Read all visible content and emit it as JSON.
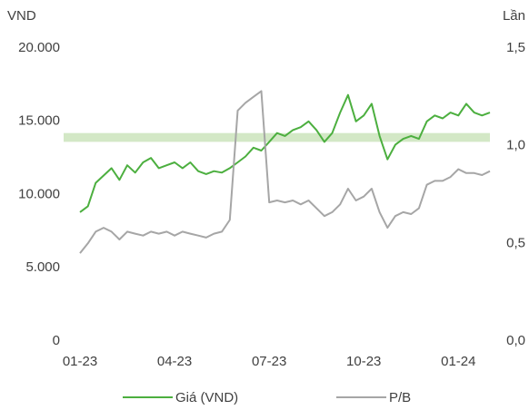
{
  "chart_data": {
    "type": "line",
    "y_axis_label": "VND",
    "y2_axis_label": "Lần",
    "x": [
      0,
      0.25,
      0.5,
      0.75,
      1,
      1.25,
      1.5,
      1.75,
      2,
      2.25,
      2.5,
      2.75,
      3,
      3.25,
      3.5,
      3.75,
      4,
      4.25,
      4.5,
      4.75,
      5,
      5.25,
      5.5,
      5.75,
      6,
      6.25,
      6.5,
      6.75,
      7,
      7.25,
      7.5,
      7.75,
      8,
      8.25,
      8.5,
      8.75,
      9,
      9.25,
      9.5,
      9.75,
      10,
      10.25,
      10.5,
      10.75,
      11,
      11.25,
      11.5,
      11.75,
      12,
      12.25,
      12.5,
      12.75,
      13
    ],
    "xlim": [
      0,
      13
    ],
    "xticks": [
      {
        "value": 0,
        "label": "01-23"
      },
      {
        "value": 3,
        "label": "04-23"
      },
      {
        "value": 6,
        "label": "07-23"
      },
      {
        "value": 9,
        "label": "10-23"
      },
      {
        "value": 12,
        "label": "01-24"
      }
    ],
    "ylim": [
      0,
      20000
    ],
    "yticks": [
      0,
      {
        "value": 5000,
        "label": "5.000"
      },
      {
        "value": 10000,
        "label": "10.000"
      },
      {
        "value": 15000,
        "label": "15.000"
      },
      {
        "value": 20000,
        "label": "20.000"
      }
    ],
    "y2lim": [
      0,
      1.5
    ],
    "y2ticks": [
      {
        "value": 0,
        "label": "0,0"
      },
      {
        "value": 0.5,
        "label": "0,5"
      },
      {
        "value": 1,
        "label": "1,0"
      },
      {
        "value": 1.5,
        "label": "1,5"
      }
    ],
    "highlight_band": [
      13600,
      14200
    ],
    "band_color": "#d3e8c6",
    "grid": false,
    "legend": "bottom",
    "series": [
      {
        "name": "Giá (VND)",
        "color": "#4caf3f",
        "values": [
          8800,
          9200,
          10800,
          11300,
          11800,
          11000,
          12000,
          11500,
          12200,
          12500,
          11800,
          12000,
          12200,
          11800,
          12200,
          11600,
          11400,
          11600,
          11500,
          11800,
          12200,
          12600,
          13200,
          13000,
          13600,
          14200,
          14000,
          14400,
          14600,
          15000,
          14400,
          13600,
          14200,
          15600,
          16800,
          15000,
          15400,
          16200,
          14000,
          12400,
          13400,
          13800,
          14000,
          13800,
          15000,
          15400,
          15200,
          15600,
          15400,
          16200,
          15600,
          15400,
          15600
        ]
      },
      {
        "name": "P/B",
        "color": "#a6a6a6",
        "axis": "y2",
        "values": [
          0.45,
          0.5,
          0.56,
          0.58,
          0.56,
          0.52,
          0.56,
          0.55,
          0.54,
          0.56,
          0.55,
          0.56,
          0.54,
          0.56,
          0.55,
          0.54,
          0.53,
          0.55,
          0.56,
          0.62,
          1.18,
          1.22,
          1.25,
          1.28,
          0.71,
          0.72,
          0.71,
          0.72,
          0.7,
          0.72,
          0.68,
          0.64,
          0.66,
          0.7,
          0.78,
          0.72,
          0.74,
          0.78,
          0.66,
          0.58,
          0.64,
          0.66,
          0.65,
          0.68,
          0.8,
          0.82,
          0.82,
          0.84,
          0.88,
          0.86,
          0.86,
          0.85,
          0.87
        ]
      }
    ]
  }
}
